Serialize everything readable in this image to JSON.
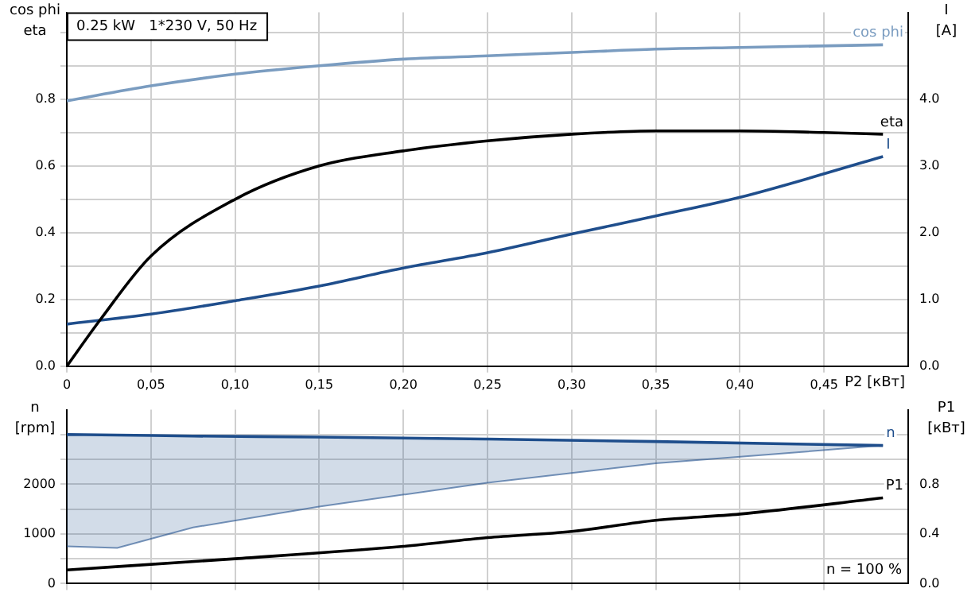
{
  "chart_data": [
    {
      "type": "line",
      "title": "0.25 kW   1*230 V, 50 Hz",
      "xlabel": "P2 [кВт]",
      "ylabel": "cos phi\neta",
      "y2label": "I\n[A]",
      "xlim": [
        0,
        0.5
      ],
      "ylim": [
        0,
        1.06
      ],
      "y2lim": [
        0,
        5.3
      ],
      "xticks": [
        0,
        {
          "value": 0.05,
          "label": "0,05"
        },
        {
          "value": 0.1,
          "label": "0,10"
        },
        {
          "value": 0.15,
          "label": "0,15"
        },
        {
          "value": 0.2,
          "label": "0,20"
        },
        {
          "value": 0.25,
          "label": "0,25"
        },
        {
          "value": 0.3,
          "label": "0,30"
        },
        {
          "value": 0.35,
          "label": "0,35"
        },
        {
          "value": 0.4,
          "label": "0,40"
        },
        {
          "value": 0.45,
          "label": "0,45"
        }
      ],
      "yticks": [
        {
          "value": 0,
          "label": "0.0"
        },
        {
          "value": 0.1,
          "label": null
        },
        0.2,
        {
          "value": 0.3,
          "label": null
        },
        0.4,
        {
          "value": 0.5,
          "label": null
        },
        0.6,
        {
          "value": 0.7,
          "label": null
        },
        0.8,
        {
          "value": 0.9,
          "label": null
        },
        {
          "value": 1.0,
          "label": null
        }
      ],
      "y2ticks": [
        {
          "value": 0,
          "label": "0.0"
        },
        {
          "value": 1,
          "label": "1.0"
        },
        {
          "value": 2,
          "label": "2.0"
        },
        {
          "value": 3,
          "label": "3.0"
        },
        {
          "value": 4,
          "label": "4.0"
        }
      ],
      "grid": true,
      "legend": false,
      "marker": "none",
      "series": [
        {
          "name": "cos phi",
          "color": "#7a9cc0",
          "x": [
            0,
            0.05,
            0.1,
            0.15,
            0.2,
            0.25,
            0.3,
            0.35,
            0.4,
            0.485
          ],
          "values": [
            0.795,
            0.84,
            0.875,
            0.9,
            0.92,
            0.93,
            0.94,
            0.95,
            0.955,
            0.963
          ]
        },
        {
          "name": "eta",
          "color": "#000000",
          "x": [
            0,
            0.02,
            0.05,
            0.1,
            0.15,
            0.2,
            0.25,
            0.3,
            0.35,
            0.4,
            0.45,
            0.485
          ],
          "values": [
            0,
            0.14,
            0.33,
            0.5,
            0.6,
            0.645,
            0.675,
            0.695,
            0.705,
            0.705,
            0.7,
            0.695
          ]
        },
        {
          "name": "I",
          "color": "#1f4e8c",
          "axis": "y2",
          "x": [
            0,
            0.05,
            0.1,
            0.15,
            0.2,
            0.25,
            0.3,
            0.35,
            0.4,
            0.485
          ],
          "values": [
            0.63,
            0.78,
            0.98,
            1.2,
            1.47,
            1.7,
            1.98,
            2.25,
            2.53,
            3.14
          ]
        }
      ]
    },
    {
      "type": "line",
      "ylabel": "n\n[rpm]",
      "y2label": "P1\n[кВт]",
      "xlim": [
        0,
        0.5
      ],
      "ylim": [
        0,
        3500
      ],
      "y2lim": [
        0,
        1.4
      ],
      "tick_labels": "y",
      "xticks": [
        {
          "value": 0,
          "label": null
        },
        {
          "value": 0.05,
          "label": null
        },
        {
          "value": 0.1,
          "label": null
        },
        {
          "value": 0.15,
          "label": null
        },
        {
          "value": 0.2,
          "label": null
        },
        {
          "value": 0.25,
          "label": null
        },
        {
          "value": 0.3,
          "label": null
        },
        {
          "value": 0.35,
          "label": null
        },
        {
          "value": 0.4,
          "label": null
        },
        {
          "value": 0.45,
          "label": null
        }
      ],
      "yticks": [
        0,
        {
          "value": 500,
          "label": null
        },
        1000,
        {
          "value": 1500,
          "label": null
        },
        2000,
        {
          "value": 2500,
          "label": null
        },
        {
          "value": 3000,
          "label": null
        }
      ],
      "y2ticks": [
        {
          "value": 0,
          "label": "0.0"
        },
        {
          "value": 0.4,
          "label": "0.4"
        },
        {
          "value": 0.8,
          "label": "0.8"
        }
      ],
      "grid": true,
      "legend": false,
      "marker": "none",
      "annotations": [
        "n = 100 %"
      ],
      "series": [
        {
          "name": "n",
          "color": "#1f4e8c",
          "x": [
            0,
            0.03,
            0.075,
            0.15,
            0.25,
            0.35,
            0.485
          ],
          "values": [
            3000,
            2990,
            2970,
            2950,
            2910,
            2860,
            2780
          ],
          "lower": [
            750,
            720,
            1130,
            1550,
            2030,
            2420,
            2780
          ],
          "upper": [
            3000,
            2990,
            2975,
            2950,
            2910,
            2860,
            2780
          ]
        },
        {
          "name": "P1",
          "color": "#000000",
          "axis": "y2",
          "x": [
            0,
            0.1,
            0.2,
            0.25,
            0.3,
            0.35,
            0.4,
            0.485
          ],
          "values": [
            0.11,
            0.2,
            0.3,
            0.37,
            0.42,
            0.51,
            0.56,
            0.69
          ]
        }
      ]
    }
  ]
}
